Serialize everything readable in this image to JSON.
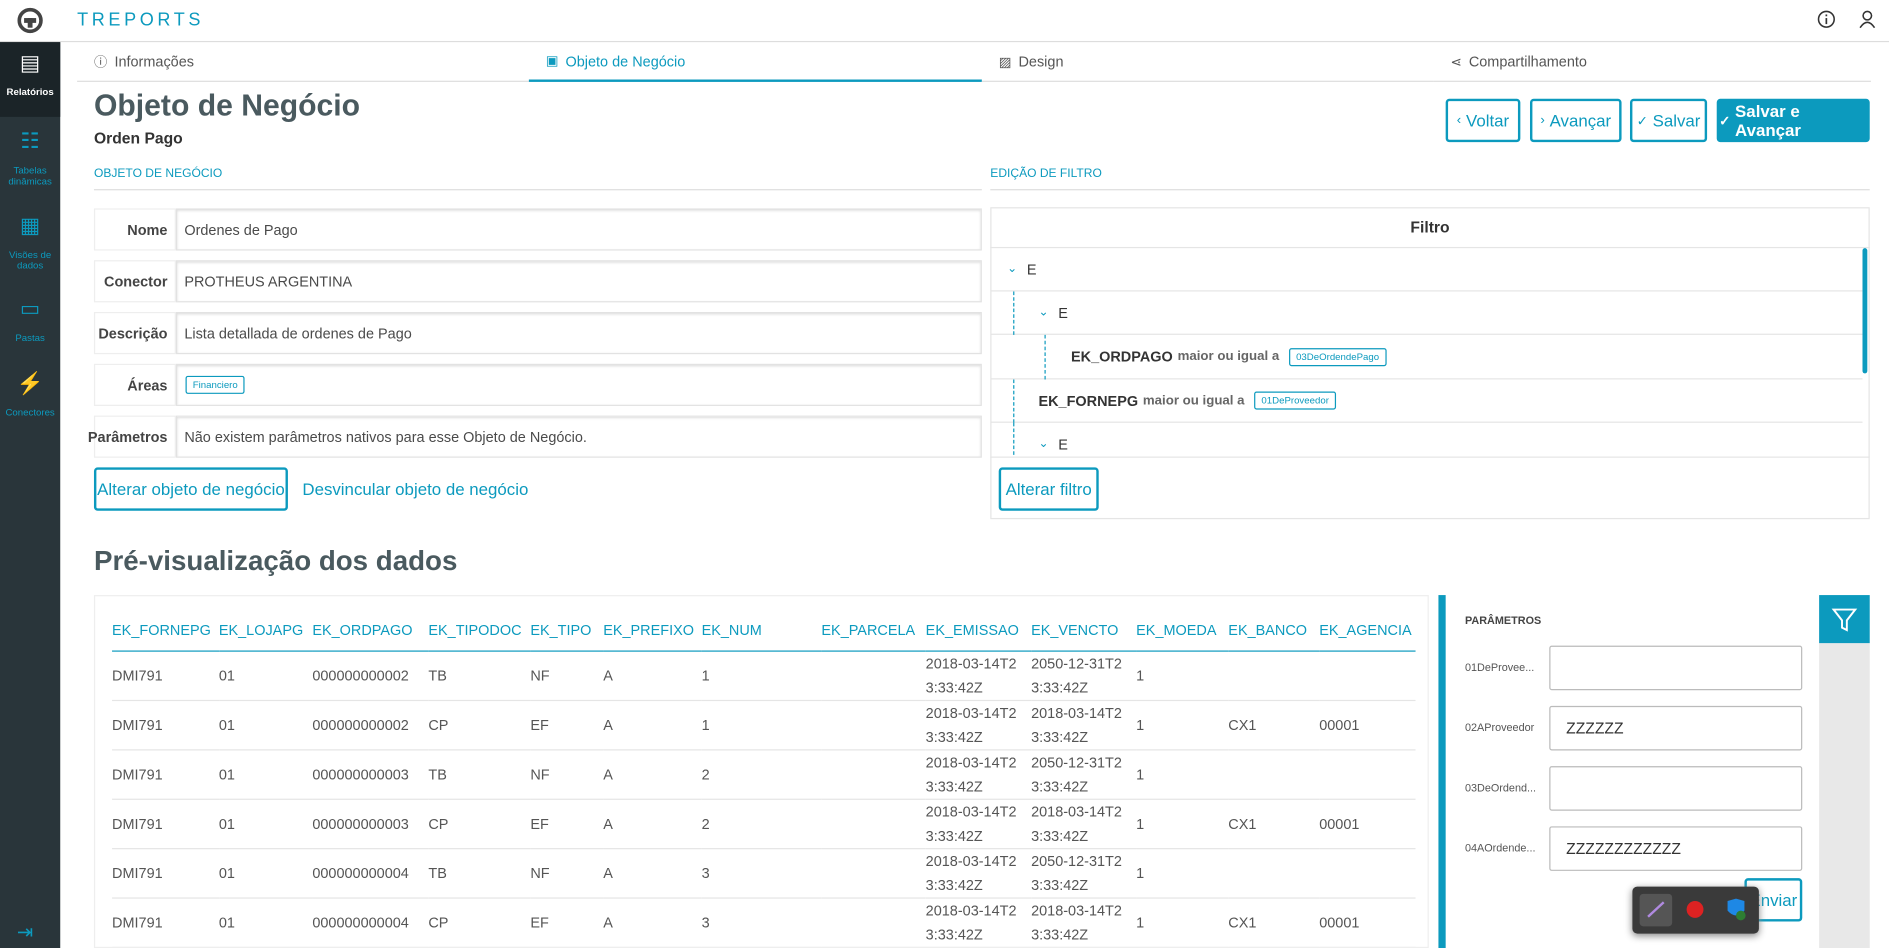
{
  "app": {
    "title": "TREPORTS"
  },
  "sidebar": [
    {
      "label": "Relatórios"
    },
    {
      "label": "Tabelas dinâmicas"
    },
    {
      "label": "Visões de dados"
    },
    {
      "label": "Pastas"
    },
    {
      "label": "Conectores"
    }
  ],
  "tabs": [
    "Informações",
    "Objeto de Negócio",
    "Design",
    "Compartilhamento"
  ],
  "page": {
    "title": "Objeto de Negócio",
    "subtitle": "Orden Pago",
    "buttons": [
      "Voltar",
      "Avançar",
      "Salvar",
      "Salvar e Avançar"
    ]
  },
  "object_section": {
    "heading": "OBJETO DE NEGÓCIO",
    "fields": [
      {
        "label": "Nome",
        "value": "Ordenes de Pago"
      },
      {
        "label": "Conector",
        "value": "PROTHEUS ARGENTINA"
      },
      {
        "label": "Descrição",
        "value": "Lista detallada de ordenes de Pago"
      },
      {
        "label": "Áreas",
        "tag": "Financiero"
      },
      {
        "label": "Parâmetros",
        "value": "Não existem parâmetros nativos para esse Objeto de Negócio."
      }
    ],
    "actions": [
      "Alterar objeto de negócio",
      "Desvincular objeto de negócio"
    ]
  },
  "filter_section": {
    "heading": "EDIÇÃO DE FILTRO",
    "panel_title": "Filtro",
    "rows": [
      {
        "operator": "E"
      },
      {
        "operator": "E"
      },
      {
        "field": "EK_ORDPAGO",
        "condition": "maior ou igual a",
        "param": "03DeOrdendePago"
      },
      {
        "field": "EK_FORNEPG",
        "condition": "maior ou igual a",
        "param": "01DeProveedor"
      },
      {
        "operator": "E"
      }
    ],
    "action": "Alterar filtro"
  },
  "preview": {
    "title": "Pré-visualização dos dados",
    "columns": [
      "EK_FORNEPG",
      "EK_LOJAPG",
      "EK_ORDPAGO",
      "EK_TIPODOC",
      "EK_TIPO",
      "EK_PREFIXO",
      "EK_NUM",
      "EK_PARCELA",
      "EK_EMISSAO",
      "EK_VENCTO",
      "EK_MOEDA",
      "EK_BANCO",
      "EK_AGENCIA"
    ],
    "rows": [
      [
        "DMI791",
        "01",
        "000000000002",
        "TB",
        "NF",
        "A",
        "1",
        null,
        "2018-03-14T23:33:42Z",
        "2050-12-31T23:33:42Z",
        "1",
        null,
        null
      ],
      [
        "DMI791",
        "01",
        "000000000002",
        "CP",
        "EF",
        "A",
        "1",
        null,
        "2018-03-14T23:33:42Z",
        "2018-03-14T23:33:42Z",
        "1",
        "CX1",
        "00001"
      ],
      [
        "DMI791",
        "01",
        "000000000003",
        "TB",
        "NF",
        "A",
        "2",
        null,
        "2018-03-14T23:33:42Z",
        "2050-12-31T23:33:42Z",
        "1",
        null,
        null
      ],
      [
        "DMI791",
        "01",
        "000000000003",
        "CP",
        "EF",
        "A",
        "2",
        null,
        "2018-03-14T23:33:42Z",
        "2018-03-14T23:33:42Z",
        "1",
        "CX1",
        "00001"
      ],
      [
        "DMI791",
        "01",
        "000000000004",
        "TB",
        "NF",
        "A",
        "3",
        null,
        "2018-03-14T23:33:42Z",
        "2050-12-31T23:33:42Z",
        "1",
        null,
        null
      ],
      [
        "DMI791",
        "01",
        "000000000004",
        "CP",
        "EF",
        "A",
        "3",
        null,
        "2018-03-14T23:33:42Z",
        "2018-03-14T23:33:42Z",
        "1",
        "CX1",
        "00001"
      ]
    ]
  },
  "parameters": {
    "heading": "PARÂMETROS",
    "fields": [
      {
        "label": "01DeProvee..."
      },
      {
        "label": "02AProveedor",
        "value": "ZZZZZZ"
      },
      {
        "label": "03DeOrdend..."
      },
      {
        "label": "04AOrdende...",
        "value": "ZZZZZZZZZZZZ"
      }
    ],
    "button": "Enviar"
  }
}
